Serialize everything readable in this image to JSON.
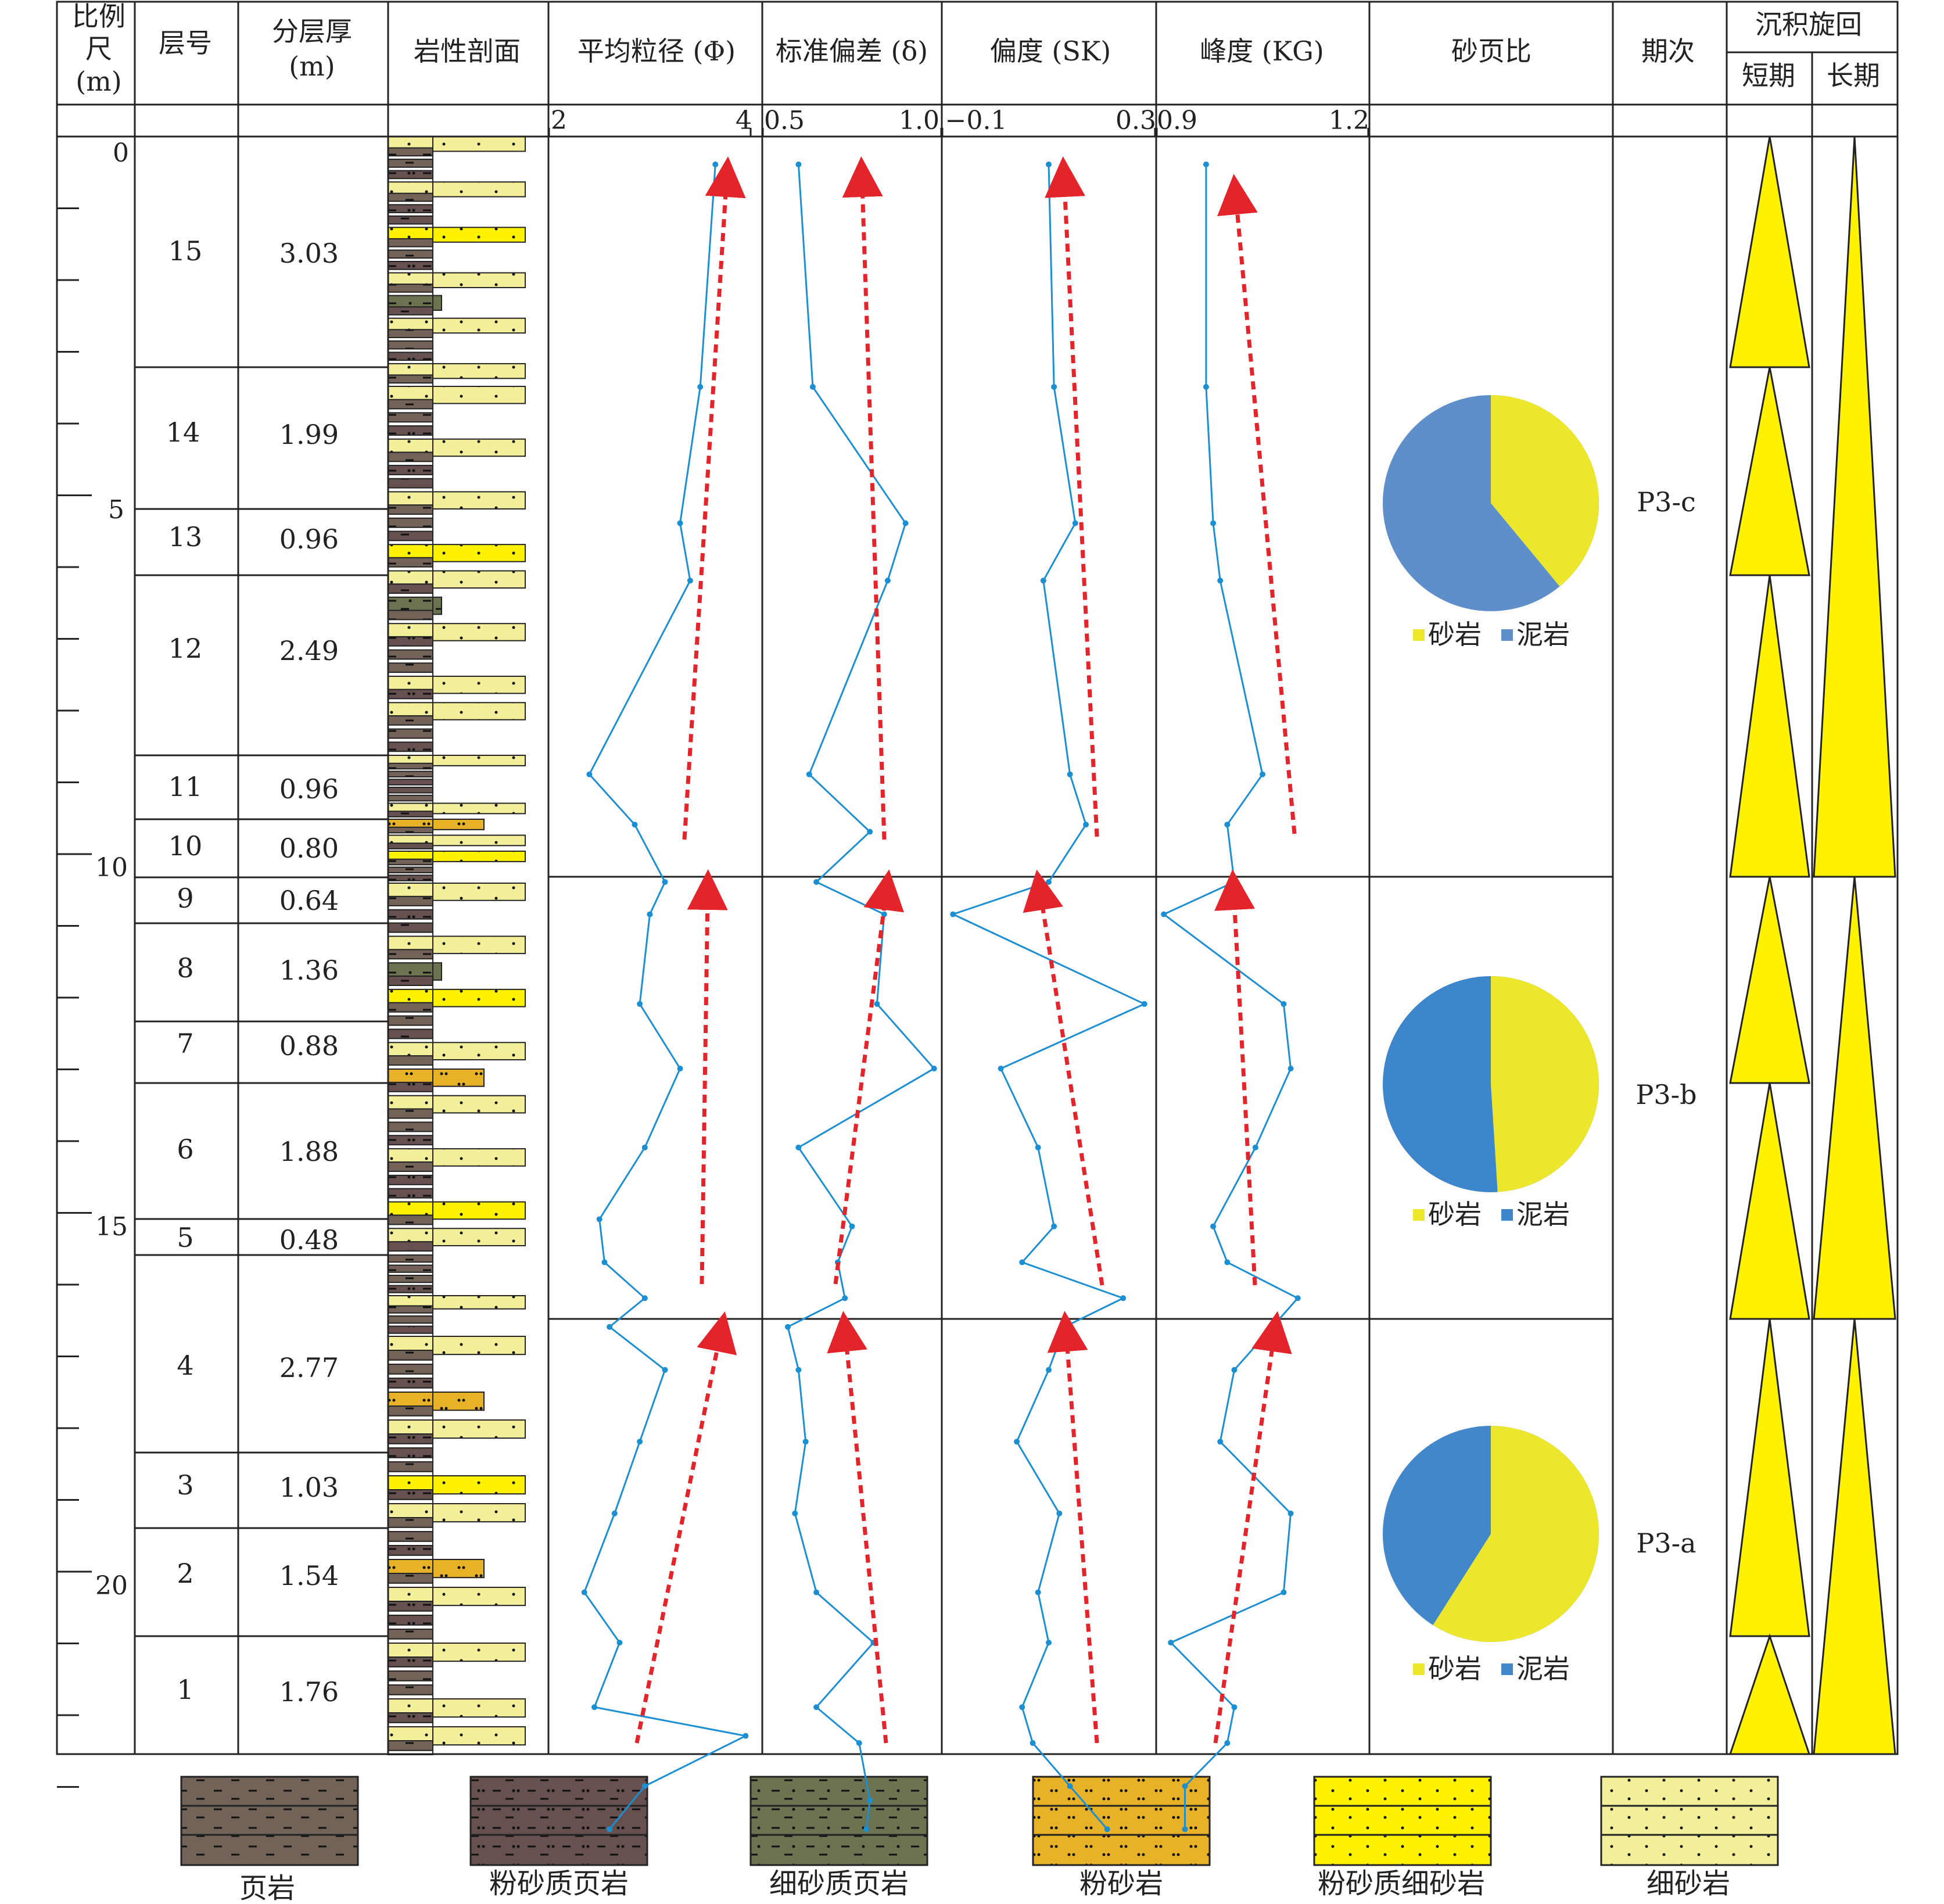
{
  "headers": {
    "scale": [
      "比例",
      "尺",
      "(m)"
    ],
    "layer_no": "层号",
    "thickness": [
      "分层厚",
      "(m)"
    ],
    "lithology": "岩性剖面",
    "mean_grain": "平均粒径 (Φ)",
    "std_dev": "标准偏差 (δ)",
    "skewness": "偏度 (SK)",
    "kurtosis": "峰度 (KG)",
    "sand_shale": "砂页比",
    "stage": "期次",
    "cycle": "沉积旋回",
    "short_term": "短期",
    "long_term": "长期"
  },
  "axis_ticks": {
    "mean_grain": [
      "2",
      "4"
    ],
    "std_dev": [
      "0.5",
      "1.0"
    ],
    "skewness": [
      "−0.1",
      "0.3"
    ],
    "kurtosis": [
      "0.9",
      "1.2"
    ]
  },
  "depth_labels": [
    "0",
    "5",
    "10",
    "15",
    "20"
  ],
  "layers": [
    {
      "no": "15",
      "thickness": "3.03"
    },
    {
      "no": "14",
      "thickness": "1.99"
    },
    {
      "no": "13",
      "thickness": "0.96"
    },
    {
      "no": "12",
      "thickness": "2.49"
    },
    {
      "no": "11",
      "thickness": "0.96"
    },
    {
      "no": "10",
      "thickness": "0.80"
    },
    {
      "no": "9",
      "thickness": "0.64"
    },
    {
      "no": "8",
      "thickness": "1.36"
    },
    {
      "no": "7",
      "thickness": "0.88"
    },
    {
      "no": "6",
      "thickness": "1.88"
    },
    {
      "no": "5",
      "thickness": "0.48"
    },
    {
      "no": "4",
      "thickness": "2.77"
    },
    {
      "no": "3",
      "thickness": "1.03"
    },
    {
      "no": "2",
      "thickness": "1.54"
    },
    {
      "no": "1",
      "thickness": "1.76"
    }
  ],
  "stages": [
    "P3-c",
    "P3-b",
    "P3-a"
  ],
  "pie_legend": {
    "sand": "砂岩",
    "mud": "泥岩"
  },
  "sand_ratios": [
    0.39,
    0.49,
    0.59
  ],
  "colors": {
    "sand": "#ece62c",
    "mud_c": "#5f8fcb",
    "mud_b": "#3e86cb",
    "mud_a": "#4187c9",
    "curve": "#1b8fd1",
    "trend": "#e3242b",
    "cycle": "#fff200"
  },
  "lithology_legend": [
    "页岩",
    "粉砂质页岩",
    "细砂质页岩",
    "粉砂岩",
    "粉砂质细砂岩",
    "细砂岩"
  ],
  "curves": {
    "mean_grain": [
      [
        0.0,
        3.65
      ],
      [
        3.1,
        3.5
      ],
      [
        5.0,
        3.3
      ],
      [
        5.8,
        3.4
      ],
      [
        8.5,
        2.4
      ],
      [
        9.2,
        2.85
      ],
      [
        10.0,
        3.15
      ],
      [
        10.45,
        3.0
      ],
      [
        11.7,
        2.9
      ],
      [
        12.6,
        3.3
      ],
      [
        13.7,
        2.95
      ],
      [
        14.7,
        2.5
      ],
      [
        15.3,
        2.55
      ],
      [
        15.8,
        2.95
      ],
      [
        16.2,
        2.6
      ],
      [
        16.8,
        3.15
      ],
      [
        17.8,
        2.9
      ],
      [
        18.8,
        2.65
      ],
      [
        19.9,
        2.35
      ],
      [
        20.6,
        2.7
      ],
      [
        21.5,
        2.45
      ],
      [
        21.9,
        3.95
      ],
      [
        22.6,
        2.95
      ],
      [
        23.2,
        2.6
      ]
    ],
    "std_dev": [
      [
        0.0,
        0.6
      ],
      [
        3.1,
        0.64
      ],
      [
        5.0,
        0.9
      ],
      [
        5.8,
        0.85
      ],
      [
        8.5,
        0.63
      ],
      [
        9.3,
        0.8
      ],
      [
        10.0,
        0.65
      ],
      [
        10.45,
        0.84
      ],
      [
        11.7,
        0.82
      ],
      [
        12.6,
        0.98
      ],
      [
        13.7,
        0.6
      ],
      [
        14.8,
        0.75
      ],
      [
        15.3,
        0.71
      ],
      [
        15.8,
        0.73
      ],
      [
        16.2,
        0.57
      ],
      [
        16.8,
        0.6
      ],
      [
        17.8,
        0.62
      ],
      [
        18.8,
        0.59
      ],
      [
        19.9,
        0.65
      ],
      [
        20.6,
        0.81
      ],
      [
        21.5,
        0.65
      ],
      [
        22.0,
        0.77
      ],
      [
        22.8,
        0.8
      ],
      [
        23.2,
        0.79
      ]
    ],
    "skewness": [
      [
        0.0,
        0.1
      ],
      [
        3.1,
        0.11
      ],
      [
        5.0,
        0.15
      ],
      [
        5.8,
        0.09
      ],
      [
        8.5,
        0.14
      ],
      [
        9.2,
        0.17
      ],
      [
        10.0,
        0.1
      ],
      [
        10.45,
        -0.08
      ],
      [
        11.7,
        0.28
      ],
      [
        12.6,
        0.01
      ],
      [
        13.7,
        0.08
      ],
      [
        14.8,
        0.11
      ],
      [
        15.3,
        0.05
      ],
      [
        15.8,
        0.24
      ],
      [
        16.2,
        0.13
      ],
      [
        16.8,
        0.1
      ],
      [
        17.8,
        0.04
      ],
      [
        18.8,
        0.12
      ],
      [
        19.9,
        0.08
      ],
      [
        20.6,
        0.1
      ],
      [
        21.5,
        0.05
      ],
      [
        22.0,
        0.07
      ],
      [
        22.6,
        0.14
      ],
      [
        23.2,
        0.21
      ]
    ],
    "kurtosis": [
      [
        0.0,
        0.97
      ],
      [
        3.1,
        0.97
      ],
      [
        5.0,
        0.98
      ],
      [
        5.8,
        0.99
      ],
      [
        8.5,
        1.05
      ],
      [
        9.2,
        1.0
      ],
      [
        10.0,
        1.01
      ],
      [
        10.45,
        0.91
      ],
      [
        11.7,
        1.08
      ],
      [
        12.6,
        1.09
      ],
      [
        13.7,
        1.04
      ],
      [
        14.8,
        0.98
      ],
      [
        15.3,
        1.0
      ],
      [
        15.8,
        1.1
      ],
      [
        16.8,
        1.01
      ],
      [
        17.8,
        0.99
      ],
      [
        18.8,
        1.09
      ],
      [
        19.9,
        1.08
      ],
      [
        20.6,
        0.92
      ],
      [
        21.5,
        1.01
      ],
      [
        22.0,
        1.0
      ],
      [
        22.6,
        0.94
      ],
      [
        23.2,
        0.94
      ]
    ]
  }
}
